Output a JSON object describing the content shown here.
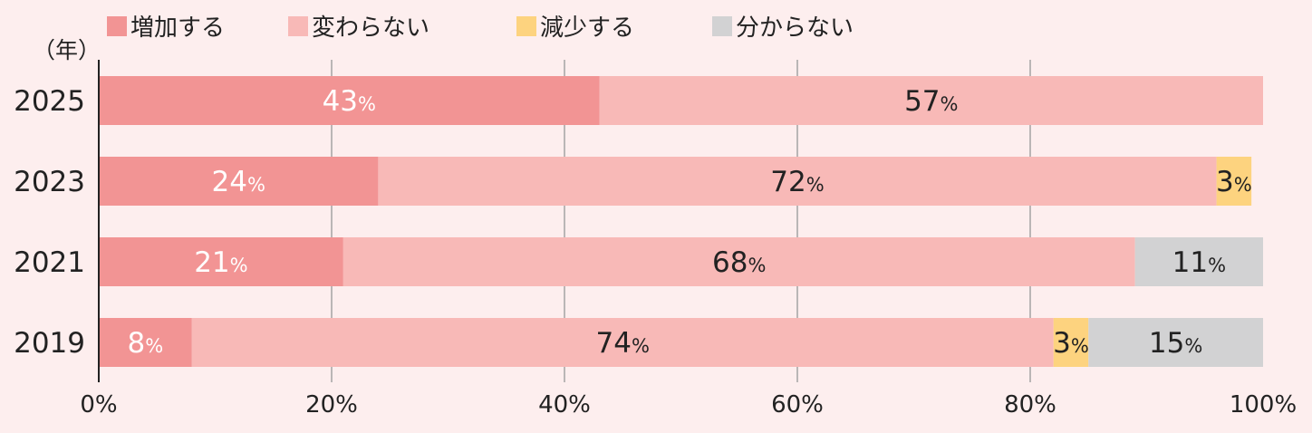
{
  "chart_data": {
    "type": "bar",
    "orientation": "horizontal",
    "stacked": true,
    "categories": [
      "2025",
      "2023",
      "2021",
      "2019"
    ],
    "y_unit_label": "（年）",
    "series": [
      {
        "name": "増加する",
        "color": "#f29494",
        "values": [
          43,
          24,
          21,
          8
        ],
        "labels": [
          "43",
          "24",
          "21",
          "8"
        ],
        "label_color": "#ffffff"
      },
      {
        "name": "変わらない",
        "color": "#f8b9b7",
        "values": [
          57,
          72,
          68,
          74
        ],
        "labels": [
          "57",
          "72",
          "68",
          "74"
        ],
        "label_color": "#222222"
      },
      {
        "name": "減少する",
        "color": "#fdd37f",
        "values": [
          0,
          3,
          0,
          3
        ],
        "labels": [
          "",
          "3",
          "",
          "3"
        ],
        "label_color": "#222222"
      },
      {
        "name": "分からない",
        "color": "#d2d2d3",
        "values": [
          0,
          0,
          11,
          15
        ],
        "labels": [
          "",
          "",
          "11",
          "15"
        ],
        "label_color": "#222222"
      }
    ],
    "label_suffix": "%",
    "xlim": [
      0,
      100
    ],
    "xticks": [
      "0%",
      "20%",
      "40%",
      "60%",
      "80%",
      "100%"
    ],
    "grid": true,
    "legend_position": "top"
  }
}
